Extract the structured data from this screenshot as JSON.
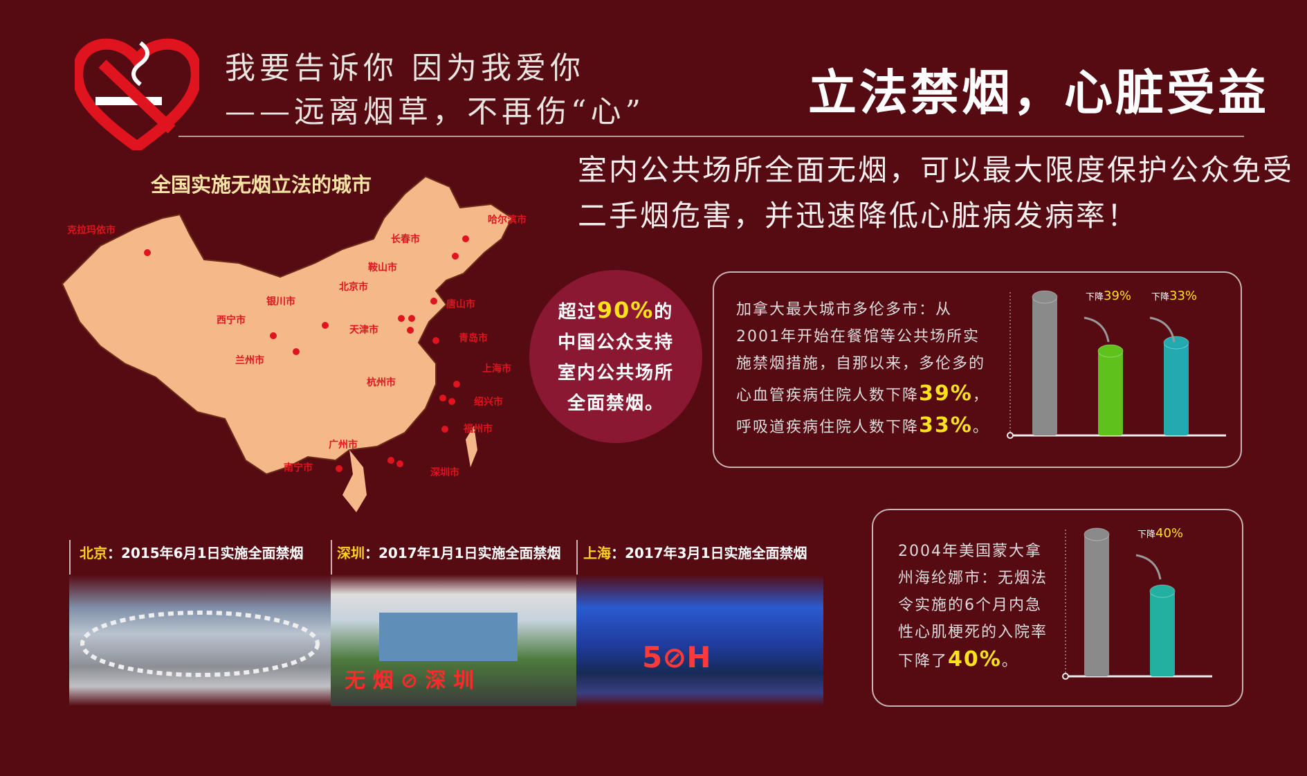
{
  "header": {
    "slogan_line1": "我要告诉你 因为我爱你",
    "slogan_line2": "——远离烟草，不再伤“心”",
    "title": "立法禁烟，心脏受益",
    "logo_icon": "no-smoking-heart-icon"
  },
  "intro": {
    "line1": "室内公共场所全面无烟，可以最大限度保护公众免受",
    "line2": "二手烟危害，并迅速降低心脏病发病率！"
  },
  "map": {
    "title": "全国实施无烟立法的城市",
    "cities": [
      "克拉玛依市",
      "哈尔滨市",
      "长春市",
      "鞍山市",
      "北京市",
      "唐山市",
      "银川市",
      "西宁市",
      "天津市",
      "青岛市",
      "兰州市",
      "上海市",
      "杭州市",
      "绍兴市",
      "福州市",
      "广州市",
      "南宁市",
      "深圳市"
    ]
  },
  "support": {
    "pre": "超过",
    "value": "90%",
    "post": "的",
    "line2": "中国公众支持",
    "line3": "室内公共场所",
    "line4": "全面禁烟。"
  },
  "toronto": {
    "lines": [
      "加拿大最大城市多伦多市：从",
      "2001年开始在餐馆等公共场所实",
      "施禁烟措施，自那以来，多伦多的"
    ],
    "line4_pre": "心血管疾病住院人数下降",
    "line4_val": "39%",
    "line4_post": "，",
    "line5_pre": "呼吸道疾病住院人数下降",
    "line5_val": "33%",
    "line5_post": "。"
  },
  "helena": {
    "lines": [
      "2004年美国蒙大拿",
      "州海纶娜市：无烟法",
      "令实施的6个月内急",
      "性心肌梗死的入院率"
    ],
    "line5_pre": "下降了",
    "line5_val": "40%",
    "line5_post": "。"
  },
  "chart_data": [
    {
      "type": "bar",
      "values": [
        100,
        61,
        67
      ],
      "colors": [
        "#8a8a8a",
        "#5fc21c",
        "#23a9b0"
      ],
      "annotations": [
        {
          "prefix": "下降",
          "value": "39%"
        },
        {
          "prefix": "下降",
          "value": "33%"
        }
      ]
    },
    {
      "type": "bar",
      "values": [
        100,
        60
      ],
      "colors": [
        "#8a8a8a",
        "#23b0a0"
      ],
      "annotations": [
        {
          "prefix": "下降",
          "value": "40%"
        }
      ]
    }
  ],
  "photos": [
    {
      "city": "北京",
      "text": "：2015年6月1日实施全面禁烟"
    },
    {
      "city": "深圳",
      "text": "：2017年1月1日实施全面禁烟",
      "sign": "无 烟 ⊘ 深 圳"
    },
    {
      "city": "上海",
      "text": "：2017年3月1日实施全面禁烟",
      "sign": "5⊘H"
    }
  ]
}
